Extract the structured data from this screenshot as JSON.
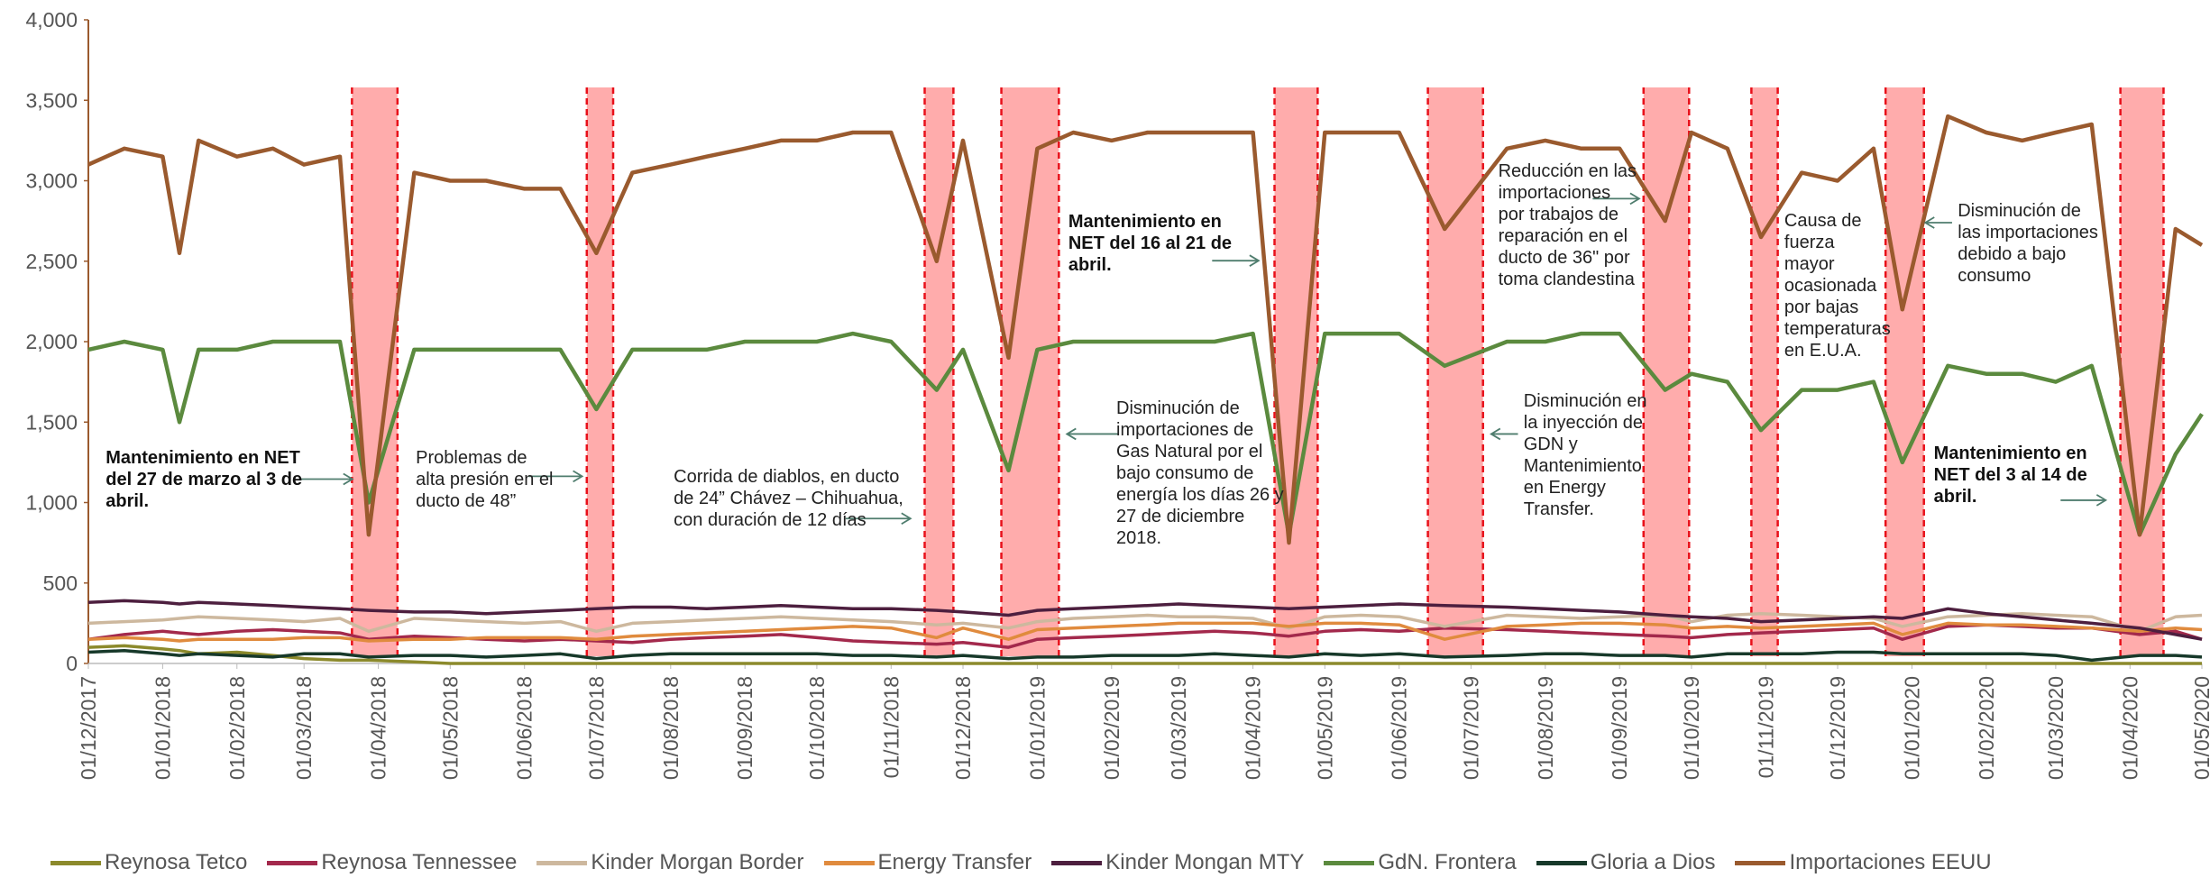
{
  "chart_data": {
    "type": "line",
    "x": [
      "2017-12-01",
      "2017-12-16",
      "2018-01-01",
      "2018-01-08",
      "2018-01-16",
      "2018-02-01",
      "2018-02-16",
      "2018-03-01",
      "2018-03-16",
      "2018-03-28",
      "2018-04-16",
      "2018-05-01",
      "2018-05-16",
      "2018-06-01",
      "2018-06-16",
      "2018-07-01",
      "2018-07-16",
      "2018-08-01",
      "2018-08-16",
      "2018-09-01",
      "2018-09-16",
      "2018-10-01",
      "2018-10-16",
      "2018-11-01",
      "2018-11-20",
      "2018-12-01",
      "2018-12-20",
      "2019-01-01",
      "2019-01-16",
      "2019-02-01",
      "2019-02-16",
      "2019-03-01",
      "2019-03-16",
      "2019-04-01",
      "2019-04-16",
      "2019-05-01",
      "2019-05-16",
      "2019-06-01",
      "2019-06-20",
      "2019-07-16",
      "2019-08-01",
      "2019-08-16",
      "2019-09-01",
      "2019-09-20",
      "2019-10-01",
      "2019-10-16",
      "2019-10-30",
      "2019-11-16",
      "2019-12-01",
      "2019-12-16",
      "2019-12-28",
      "2020-01-16",
      "2020-02-01",
      "2020-02-16",
      "2020-03-01",
      "2020-03-16",
      "2020-04-05",
      "2020-04-20",
      "2020-05-01"
    ],
    "series": [
      {
        "name": "Reynosa Tetco",
        "color": "#8c8a2c",
        "values": [
          100,
          110,
          90,
          80,
          60,
          70,
          50,
          30,
          20,
          20,
          10,
          0,
          0,
          0,
          0,
          0,
          0,
          0,
          0,
          0,
          0,
          0,
          0,
          0,
          0,
          0,
          0,
          0,
          0,
          0,
          0,
          0,
          0,
          0,
          0,
          0,
          0,
          0,
          0,
          0,
          0,
          0,
          0,
          0,
          0,
          0,
          0,
          0,
          0,
          0,
          0,
          0,
          0,
          0,
          0,
          0,
          0,
          0,
          0
        ]
      },
      {
        "name": "Reynosa Tennessee",
        "color": "#a3294c",
        "values": [
          150,
          180,
          200,
          190,
          180,
          200,
          210,
          200,
          190,
          150,
          170,
          160,
          150,
          140,
          150,
          140,
          130,
          150,
          160,
          170,
          180,
          160,
          140,
          130,
          120,
          130,
          100,
          150,
          160,
          170,
          180,
          190,
          200,
          190,
          170,
          200,
          210,
          200,
          220,
          210,
          200,
          190,
          180,
          170,
          160,
          180,
          190,
          200,
          210,
          220,
          150,
          230,
          240,
          230,
          220,
          220,
          180,
          200,
          150
        ]
      },
      {
        "name": "Kinder Morgan Border",
        "color": "#cdb89e",
        "values": [
          250,
          260,
          270,
          280,
          290,
          280,
          270,
          260,
          280,
          200,
          280,
          270,
          260,
          250,
          260,
          200,
          250,
          260,
          270,
          280,
          290,
          280,
          270,
          260,
          240,
          250,
          220,
          260,
          280,
          290,
          300,
          290,
          290,
          280,
          220,
          290,
          300,
          290,
          230,
          300,
          290,
          280,
          290,
          300,
          260,
          300,
          310,
          300,
          290,
          280,
          230,
          290,
          300,
          310,
          300,
          290,
          200,
          290,
          300
        ]
      },
      {
        "name": "Energy Transfer",
        "color": "#e08b3e",
        "values": [
          150,
          160,
          150,
          140,
          150,
          150,
          150,
          160,
          160,
          140,
          150,
          150,
          160,
          160,
          160,
          150,
          170,
          180,
          190,
          200,
          210,
          220,
          230,
          220,
          160,
          220,
          150,
          210,
          220,
          230,
          240,
          250,
          250,
          250,
          230,
          250,
          250,
          240,
          150,
          230,
          240,
          250,
          250,
          240,
          220,
          230,
          220,
          230,
          240,
          250,
          180,
          250,
          240,
          240,
          230,
          220,
          200,
          220,
          210
        ]
      },
      {
        "name": "Kinder Mongan MTY",
        "color": "#4d1f3f",
        "values": [
          380,
          390,
          380,
          370,
          380,
          370,
          360,
          350,
          340,
          330,
          320,
          320,
          310,
          320,
          330,
          340,
          350,
          350,
          340,
          350,
          360,
          350,
          340,
          340,
          330,
          320,
          300,
          330,
          340,
          350,
          360,
          370,
          360,
          350,
          340,
          350,
          360,
          370,
          360,
          350,
          340,
          330,
          320,
          300,
          290,
          280,
          260,
          270,
          280,
          290,
          280,
          340,
          310,
          290,
          270,
          250,
          220,
          180,
          150
        ]
      },
      {
        "name": "GdN. Frontera",
        "color": "#5b8a3e",
        "values": [
          1950,
          2000,
          1950,
          1500,
          1950,
          1950,
          2000,
          2000,
          2000,
          1000,
          1950,
          1950,
          1950,
          1950,
          1950,
          1580,
          1950,
          1950,
          1950,
          2000,
          2000,
          2000,
          2050,
          2000,
          1700,
          1950,
          1200,
          1950,
          2000,
          2000,
          2000,
          2000,
          2000,
          2050,
          800,
          2050,
          2050,
          2050,
          1850,
          2000,
          2000,
          2050,
          2050,
          1700,
          1800,
          1750,
          1450,
          1700,
          1700,
          1750,
          1250,
          1850,
          1800,
          1800,
          1750,
          1850,
          800,
          1300,
          1550
        ]
      },
      {
        "name": "Gloria a Dios",
        "color": "#17392a",
        "values": [
          70,
          80,
          60,
          50,
          60,
          50,
          40,
          60,
          60,
          40,
          50,
          50,
          40,
          50,
          60,
          30,
          50,
          60,
          60,
          60,
          60,
          60,
          50,
          50,
          40,
          50,
          30,
          40,
          40,
          50,
          50,
          50,
          60,
          50,
          40,
          60,
          50,
          60,
          40,
          50,
          60,
          60,
          50,
          50,
          40,
          60,
          60,
          60,
          70,
          70,
          60,
          60,
          60,
          60,
          50,
          20,
          50,
          50,
          40
        ]
      },
      {
        "name": "Importaciones EEUU",
        "color": "#9a5a2e",
        "values": [
          3100,
          3200,
          3150,
          2550,
          3250,
          3150,
          3200,
          3100,
          3150,
          800,
          3050,
          3000,
          3000,
          2950,
          2950,
          2550,
          3050,
          3100,
          3150,
          3200,
          3250,
          3250,
          3300,
          3300,
          2500,
          3250,
          1900,
          3200,
          3300,
          3250,
          3300,
          3300,
          3300,
          3300,
          750,
          3300,
          3300,
          3300,
          2700,
          3200,
          3250,
          3200,
          3200,
          2750,
          3300,
          3200,
          2650,
          3050,
          3000,
          3200,
          2200,
          3400,
          3300,
          3250,
          3300,
          3350,
          800,
          2700,
          2600
        ]
      }
    ],
    "xlim": [
      "2017-12-01",
      "2020-05-01"
    ],
    "xticks": [
      {
        "value": "2017-12-01",
        "label": "01/12/2017"
      },
      {
        "value": "2018-01-01",
        "label": "01/01/2018"
      },
      {
        "value": "2018-02-01",
        "label": "01/02/2018"
      },
      {
        "value": "2018-03-01",
        "label": "01/03/2018"
      },
      {
        "value": "2018-04-01",
        "label": "01/04/2018"
      },
      {
        "value": "2018-05-01",
        "label": "01/05/2018"
      },
      {
        "value": "2018-06-01",
        "label": "01/06/2018"
      },
      {
        "value": "2018-07-01",
        "label": "01/07/2018"
      },
      {
        "value": "2018-08-01",
        "label": "01/08/2018"
      },
      {
        "value": "2018-09-01",
        "label": "01/09/2018"
      },
      {
        "value": "2018-10-01",
        "label": "01/10/2018"
      },
      {
        "value": "2018-11-01",
        "label": "01/11/2018"
      },
      {
        "value": "2018-12-01",
        "label": "01/12/2018"
      },
      {
        "value": "2019-01-01",
        "label": "01/01/2019"
      },
      {
        "value": "2019-02-01",
        "label": "01/02/2019"
      },
      {
        "value": "2019-03-01",
        "label": "01/03/2019"
      },
      {
        "value": "2019-04-01",
        "label": "01/04/2019"
      },
      {
        "value": "2019-05-01",
        "label": "01/05/2019"
      },
      {
        "value": "2019-06-01",
        "label": "01/06/2019"
      },
      {
        "value": "2019-07-01",
        "label": "01/07/2019"
      },
      {
        "value": "2019-08-01",
        "label": "01/08/2019"
      },
      {
        "value": "2019-09-01",
        "label": "01/09/2019"
      },
      {
        "value": "2019-10-01",
        "label": "01/10/2019"
      },
      {
        "value": "2019-11-01",
        "label": "01/11/2019"
      },
      {
        "value": "2019-12-01",
        "label": "01/12/2019"
      },
      {
        "value": "2020-01-01",
        "label": "01/01/2020"
      },
      {
        "value": "2020-02-01",
        "label": "01/02/2020"
      },
      {
        "value": "2020-03-01",
        "label": "01/03/2020"
      },
      {
        "value": "2020-04-01",
        "label": "01/04/2020"
      },
      {
        "value": "2020-05-01",
        "label": "01/05/2020"
      }
    ],
    "ylim": [
      0,
      4000
    ],
    "yticks": [
      0,
      500,
      {
        "value": 1000,
        "label": "1,000"
      },
      {
        "value": 1500,
        "label": "1,500"
      },
      {
        "value": 2000,
        "label": "2,000"
      },
      {
        "value": 2500,
        "label": "2,500"
      },
      {
        "value": 3000,
        "label": "3,000"
      },
      {
        "value": 3500,
        "label": "3,500"
      },
      {
        "value": 4000,
        "label": "4,000"
      }
    ],
    "shaded_periods": [
      [
        "2018-03-21",
        "2018-04-09"
      ],
      [
        "2018-06-27",
        "2018-07-08"
      ],
      [
        "2018-11-15",
        "2018-11-27"
      ],
      [
        "2018-12-17",
        "2019-01-10"
      ],
      [
        "2019-04-10",
        "2019-04-28"
      ],
      [
        "2019-06-13",
        "2019-07-06"
      ],
      [
        "2019-09-11",
        "2019-09-30"
      ],
      [
        "2019-10-26",
        "2019-11-06"
      ],
      [
        "2019-12-21",
        "2020-01-06"
      ],
      [
        "2020-03-28",
        "2020-04-15"
      ]
    ],
    "annotations": [
      "Mantenimiento en NET del 27 de marzo al 3 de abril.",
      "Problemas de alta presión en el ducto de 48”",
      "Corrida de diablos, en ducto de 24” Chávez – Chihuahua, con duración de 12 días",
      "Mantenimiento en NET del 16 al 21 de abril.",
      "Disminución de importaciones de Gas Natural por el bajo consumo de energía los días 26 y 27 de diciembre 2018.",
      "Disminución en la inyección de GDN y Mantenimiento en Energy Transfer.",
      "Reducción en las importaciones por trabajos de reparación en el ducto de 36\" por toma clandestina",
      "Causa de fuerza mayor ocasionada por bajas temperaturas en E.U.A.",
      "Disminución de las importaciones debido a bajo consumo",
      "Mantenimiento en NET del 3 al 14 de abril."
    ]
  }
}
